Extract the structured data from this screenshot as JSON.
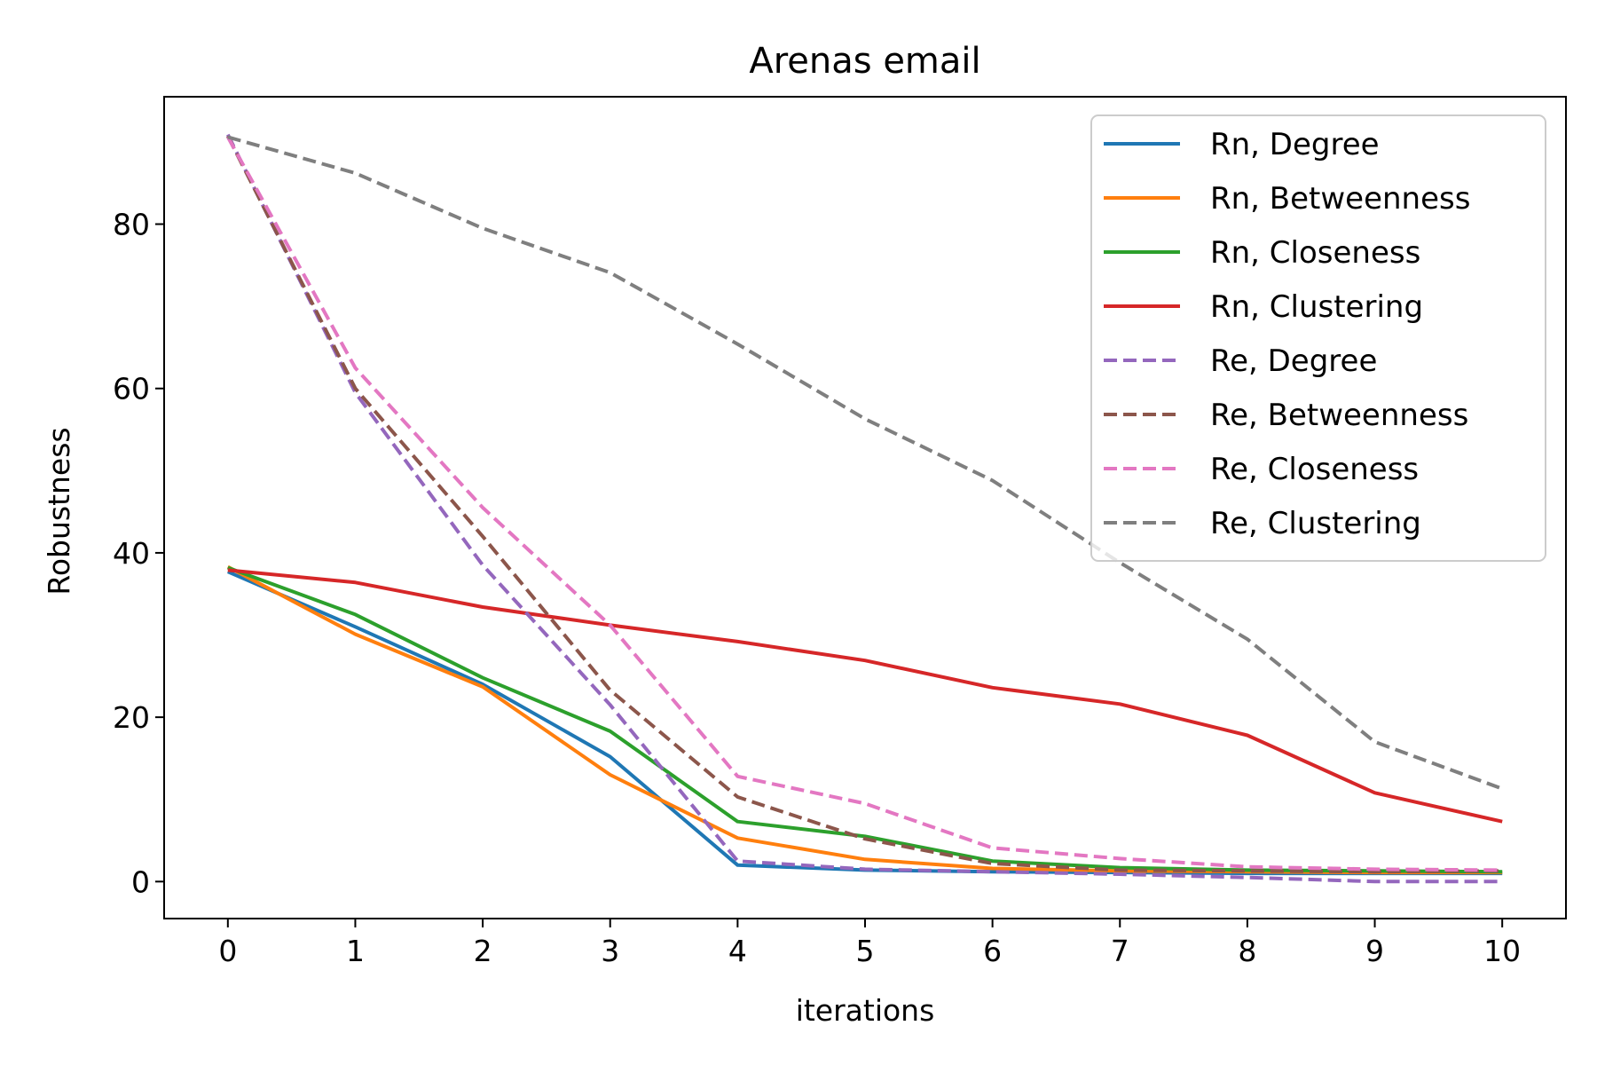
{
  "chart_data": {
    "type": "line",
    "title": "Arenas email",
    "xlabel": "iterations",
    "ylabel": "Robustness",
    "xlim": [
      -0.5,
      10.5
    ],
    "ylim": [
      -4.5,
      95.5
    ],
    "x_ticks": [
      0,
      1,
      2,
      3,
      4,
      5,
      6,
      7,
      8,
      9,
      10
    ],
    "y_ticks": [
      0,
      20,
      40,
      60,
      80
    ],
    "grid": false,
    "legend_position": "top-right",
    "x": [
      0,
      1,
      2,
      3,
      4,
      5,
      6,
      7,
      8,
      9,
      10
    ],
    "series": [
      {
        "name": "Rn, Degree",
        "color": "#1f77b4",
        "dash": "solid",
        "values": [
          37.7,
          31.0,
          24.0,
          15.2,
          2.0,
          1.4,
          1.2,
          1.1,
          1.0,
          1.0,
          1.0
        ]
      },
      {
        "name": "Rn, Betweenness",
        "color": "#ff7f0e",
        "dash": "solid",
        "values": [
          38.3,
          30.1,
          23.7,
          13.0,
          5.3,
          2.7,
          1.6,
          1.3,
          1.2,
          1.1,
          1.1
        ]
      },
      {
        "name": "Rn, Closeness",
        "color": "#2ca02c",
        "dash": "solid",
        "values": [
          38.2,
          32.5,
          24.8,
          18.3,
          7.3,
          5.5,
          2.5,
          1.7,
          1.4,
          1.3,
          1.2
        ]
      },
      {
        "name": "Rn, Clustering",
        "color": "#d62728",
        "dash": "solid",
        "values": [
          37.9,
          36.4,
          33.4,
          31.2,
          29.2,
          26.9,
          23.6,
          21.6,
          17.8,
          10.8,
          7.3
        ]
      },
      {
        "name": "Re, Degree",
        "color": "#9467bd",
        "dash": "dashed",
        "values": [
          90.9,
          59.5,
          38.5,
          21.5,
          2.5,
          1.5,
          1.2,
          0.9,
          0.5,
          0.0,
          0.0
        ]
      },
      {
        "name": "Re, Betweenness",
        "color": "#8c564b",
        "dash": "dashed",
        "values": [
          90.7,
          60.0,
          42.0,
          23.3,
          10.3,
          5.2,
          2.2,
          1.4,
          1.3,
          1.2,
          1.3
        ]
      },
      {
        "name": "Re, Closeness",
        "color": "#e377c2",
        "dash": "dashed",
        "values": [
          90.6,
          62.5,
          45.5,
          31.2,
          12.8,
          9.5,
          4.1,
          2.8,
          1.8,
          1.5,
          1.4
        ]
      },
      {
        "name": "Re, Clustering",
        "color": "#7f7f7f",
        "dash": "dashed",
        "values": [
          90.6,
          86.2,
          79.5,
          74.1,
          65.4,
          56.3,
          48.8,
          38.8,
          29.5,
          17.0,
          11.3
        ]
      }
    ]
  }
}
